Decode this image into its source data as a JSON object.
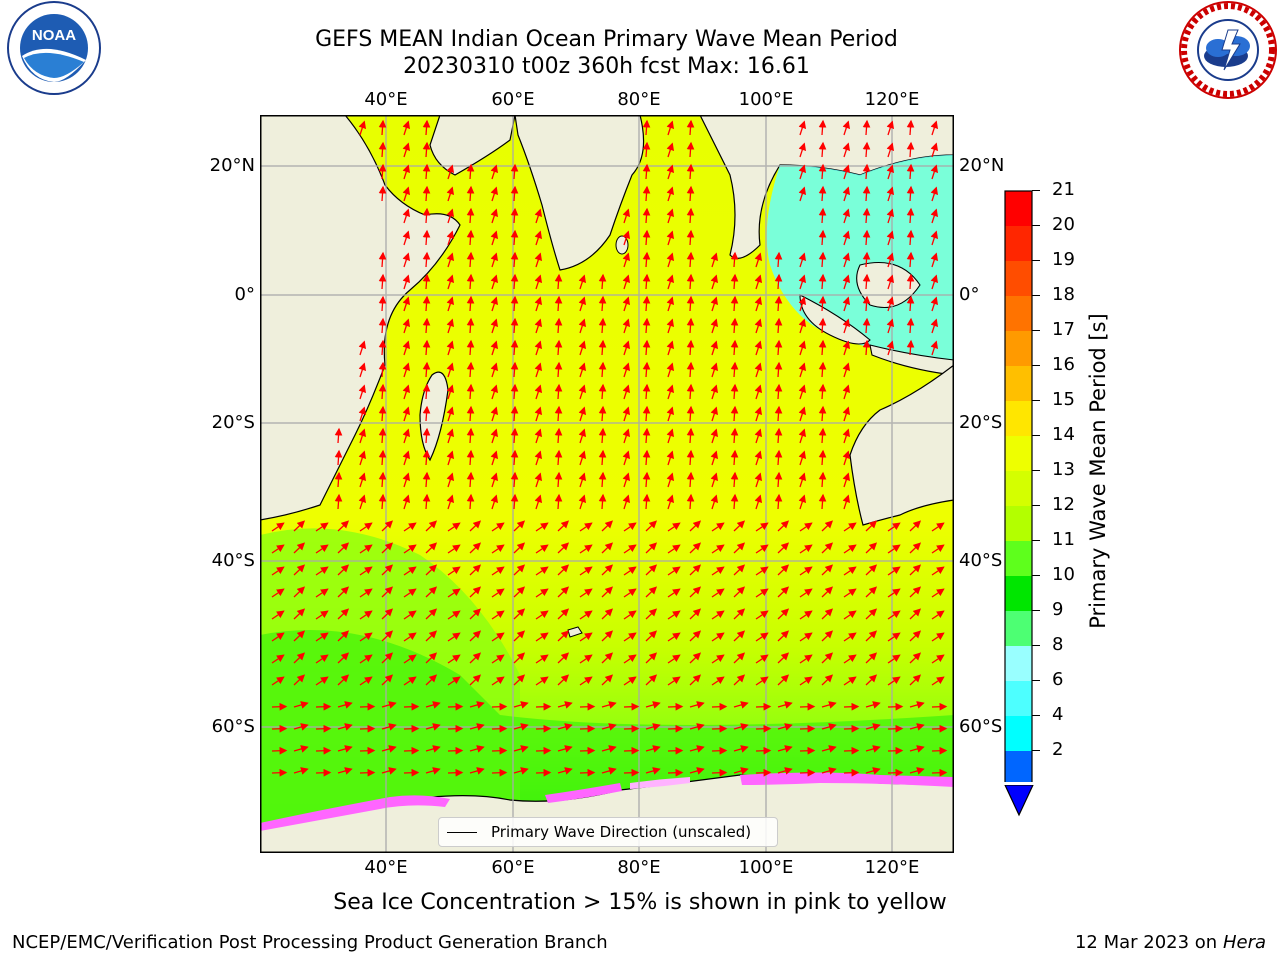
{
  "title": "GEFS MEAN Indian Ocean Primary Wave Mean Period",
  "subtitle": "20230310 t00z 360h fcst   Max: 16.61",
  "logos": {
    "left": {
      "text": "NOAA",
      "ring_text": "NATIONAL OCEANIC AND ATMOSPHERIC ADMINISTRATION · U.S. DEPARTMENT OF COMMERCE"
    },
    "right": {
      "ring_text": "NATIONAL WEATHER SERVICE"
    }
  },
  "axes": {
    "lon_ticks": [
      "40°E",
      "60°E",
      "80°E",
      "100°E",
      "120°E"
    ],
    "lat_ticks": [
      "20°N",
      "0°",
      "20°S",
      "40°S",
      "60°S"
    ]
  },
  "legend": {
    "label": "Primary Wave Direction (unscaled)"
  },
  "colorbar": {
    "title": "Primary Wave Mean Period [s]",
    "ticks": [
      "21",
      "20",
      "19",
      "18",
      "17",
      "16",
      "15",
      "14",
      "13",
      "12",
      "11",
      "10",
      "9",
      "8",
      "6",
      "4",
      "2"
    ],
    "colors": [
      "#ff0000",
      "#ff2600",
      "#ff4d00",
      "#ff7300",
      "#ff9a00",
      "#ffbf00",
      "#ffe600",
      "#eeff00",
      "#d4ff00",
      "#b3ff00",
      "#5eff1c",
      "#00e600",
      "#4dff73",
      "#99ffff",
      "#4dffff",
      "#00ffff",
      "#0066ff"
    ],
    "extend_color": "#0000ff"
  },
  "footer": {
    "note": "Sea Ice Concentration > 15% is shown in pink to yellow",
    "credit": "NCEP/EMC/Verification Post Processing Product Generation Branch",
    "date": "12 Mar 2023 on",
    "machine": "Hera"
  },
  "map": {
    "field": "Primary Wave Mean Period",
    "max_value": 16.61,
    "arrow_color": "#ff0000",
    "land_color": "#efefdc",
    "ocean_base_color": "#e8ff00",
    "ice_colors": [
      "#ff66ff",
      "#ffb3ff",
      "#ffff66"
    ]
  }
}
